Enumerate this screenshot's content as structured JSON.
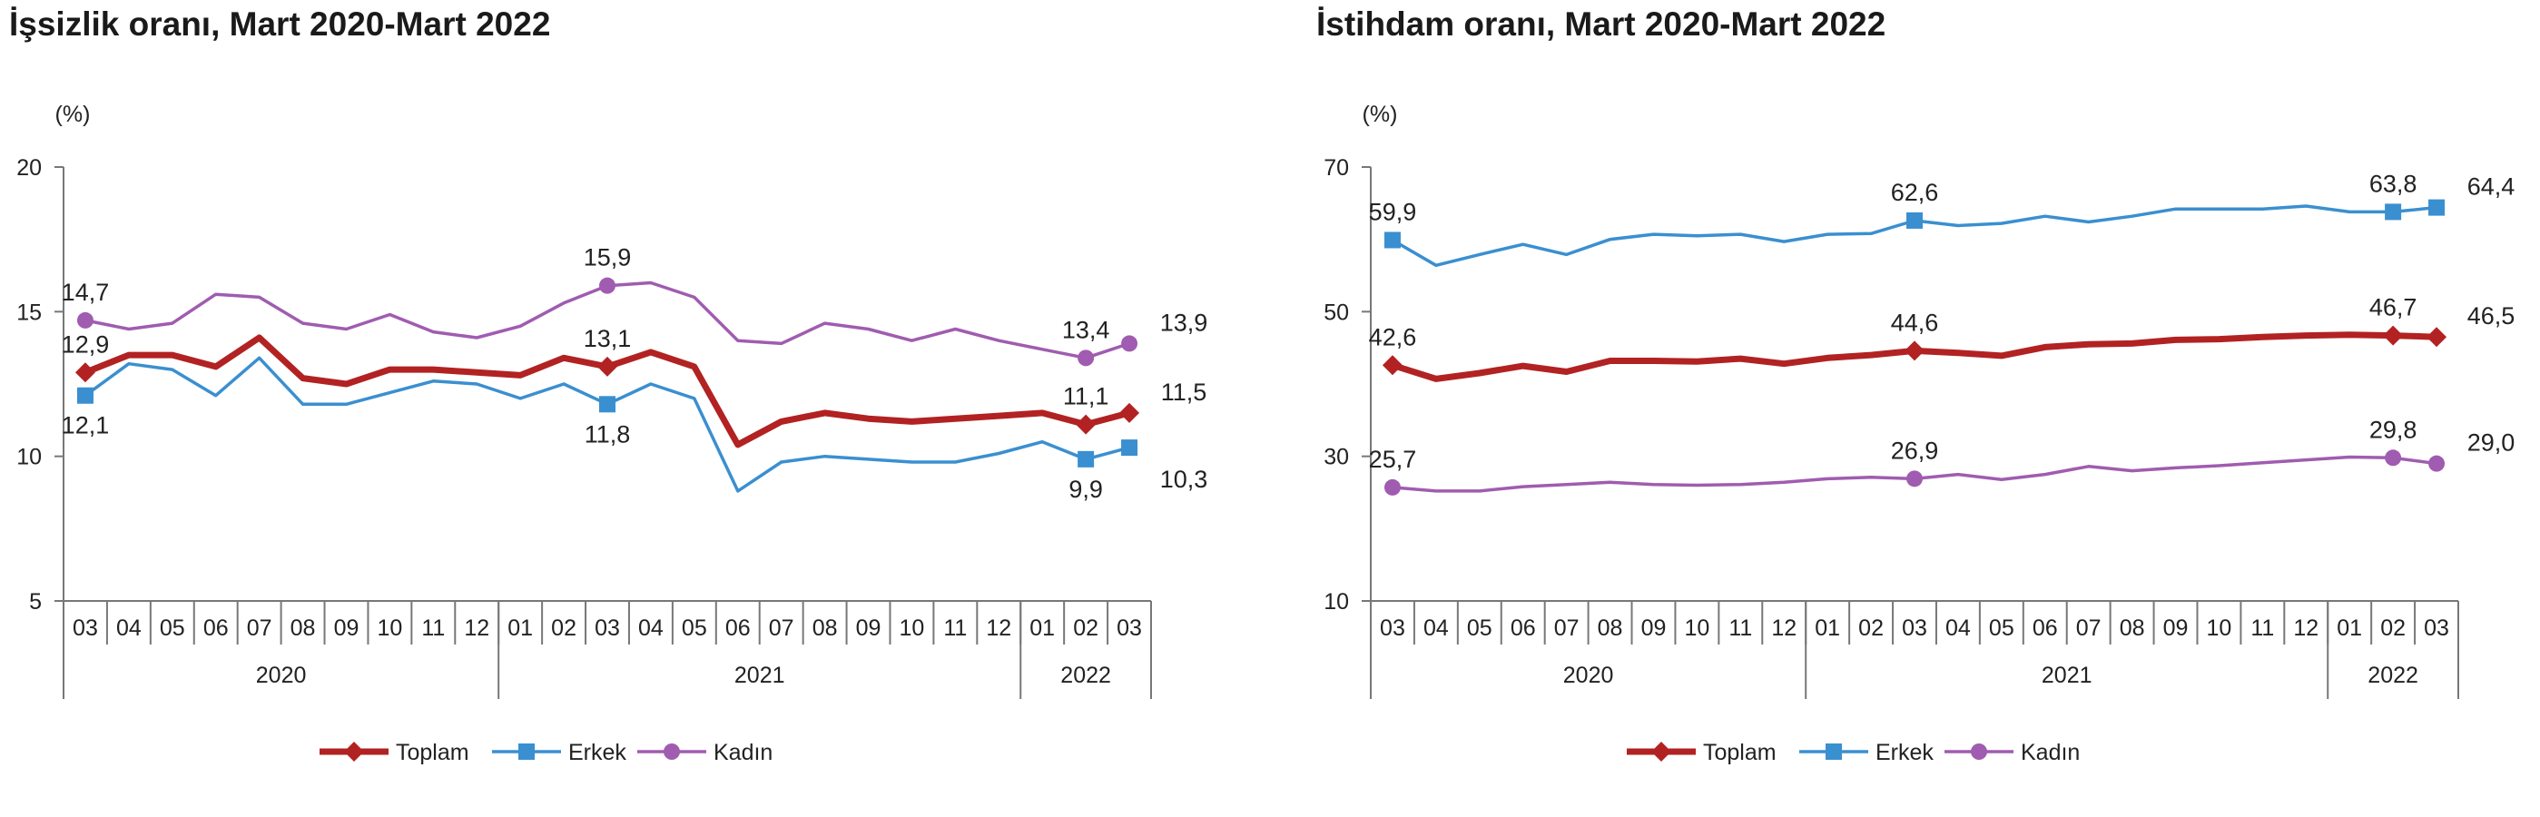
{
  "chart_data": [
    {
      "type": "line",
      "title": "İşsizlik oranı, Mart 2020-Mart 2022",
      "ylabel": "(%)",
      "ylim": [
        5,
        20
      ],
      "yticks": [
        "5",
        "10",
        "15",
        "20"
      ],
      "categories": [
        "03",
        "04",
        "05",
        "06",
        "07",
        "08",
        "09",
        "10",
        "11",
        "12",
        "01",
        "02",
        "03",
        "04",
        "05",
        "06",
        "07",
        "08",
        "09",
        "10",
        "11",
        "12",
        "01",
        "02",
        "03"
      ],
      "years": [
        {
          "label": "2020",
          "from": 0,
          "to": 9
        },
        {
          "label": "2021",
          "from": 10,
          "to": 21
        },
        {
          "label": "2022",
          "from": 22,
          "to": 24
        }
      ],
      "grid": false,
      "legend_position": "bottom",
      "series": [
        {
          "name": "Toplam",
          "color": "#b22222",
          "marker": "diamond",
          "values": [
            12.9,
            13.5,
            13.5,
            13.1,
            14.1,
            12.7,
            12.5,
            13.0,
            13.0,
            12.9,
            12.8,
            13.4,
            13.1,
            13.6,
            13.1,
            10.4,
            11.2,
            11.5,
            11.3,
            11.2,
            11.3,
            11.4,
            11.5,
            11.1,
            11.5
          ],
          "labels": [
            {
              "i": 0,
              "text": "12,9",
              "pos": "above"
            },
            {
              "i": 12,
              "text": "13,1",
              "pos": "above"
            },
            {
              "i": 23,
              "text": "11,1",
              "pos": "above"
            },
            {
              "i": 24,
              "text": "11,5",
              "pos": "right-above"
            }
          ]
        },
        {
          "name": "Erkek",
          "color": "#3a8fd0",
          "marker": "square",
          "values": [
            12.1,
            13.2,
            13.0,
            12.1,
            13.4,
            11.8,
            11.8,
            12.2,
            12.6,
            12.5,
            12.0,
            12.5,
            11.8,
            12.5,
            12.0,
            8.8,
            9.8,
            10.0,
            9.9,
            9.8,
            9.8,
            10.1,
            10.5,
            9.9,
            10.3
          ],
          "labels": [
            {
              "i": 0,
              "text": "12,1",
              "pos": "below"
            },
            {
              "i": 12,
              "text": "11,8",
              "pos": "below"
            },
            {
              "i": 23,
              "text": "9,9",
              "pos": "below"
            },
            {
              "i": 24,
              "text": "10,3",
              "pos": "right-below"
            }
          ]
        },
        {
          "name": "Kadın",
          "color": "#a05cb0",
          "marker": "circle",
          "values": [
            14.7,
            14.4,
            14.6,
            15.6,
            15.5,
            14.6,
            14.4,
            14.9,
            14.3,
            14.1,
            14.5,
            15.3,
            15.9,
            16.0,
            15.5,
            14.0,
            13.9,
            14.6,
            14.4,
            14.0,
            14.4,
            14.0,
            13.7,
            13.4,
            13.9
          ],
          "labels": [
            {
              "i": 0,
              "text": "14,7",
              "pos": "above"
            },
            {
              "i": 12,
              "text": "15,9",
              "pos": "above"
            },
            {
              "i": 23,
              "text": "13,4",
              "pos": "above"
            },
            {
              "i": 24,
              "text": "13,9",
              "pos": "right-above"
            }
          ]
        }
      ]
    },
    {
      "type": "line",
      "title": "İstihdam oranı, Mart 2020-Mart 2022",
      "ylabel": "(%)",
      "ylim": [
        10,
        70
      ],
      "yticks": [
        "10",
        "30",
        "50",
        "70"
      ],
      "categories": [
        "03",
        "04",
        "05",
        "06",
        "07",
        "08",
        "09",
        "10",
        "11",
        "12",
        "01",
        "02",
        "03",
        "04",
        "05",
        "06",
        "07",
        "08",
        "09",
        "10",
        "11",
        "12",
        "01",
        "02",
        "03"
      ],
      "years": [
        {
          "label": "2020",
          "from": 0,
          "to": 9
        },
        {
          "label": "2021",
          "from": 10,
          "to": 21
        },
        {
          "label": "2022",
          "from": 22,
          "to": 24
        }
      ],
      "grid": false,
      "legend_position": "bottom",
      "series": [
        {
          "name": "Toplam",
          "color": "#b22222",
          "marker": "diamond",
          "values": [
            42.6,
            40.7,
            41.5,
            42.5,
            41.7,
            43.2,
            43.2,
            43.1,
            43.5,
            42.8,
            43.6,
            44.0,
            44.6,
            44.3,
            43.9,
            45.1,
            45.5,
            45.6,
            46.1,
            46.2,
            46.5,
            46.7,
            46.8,
            46.7,
            46.5
          ],
          "labels": [
            {
              "i": 0,
              "text": "42,6",
              "pos": "above"
            },
            {
              "i": 12,
              "text": "44,6",
              "pos": "above"
            },
            {
              "i": 23,
              "text": "46,7",
              "pos": "above"
            },
            {
              "i": 24,
              "text": "46,5",
              "pos": "right-above"
            }
          ]
        },
        {
          "name": "Erkek",
          "color": "#3a8fd0",
          "marker": "square",
          "values": [
            59.9,
            56.4,
            57.9,
            59.3,
            57.9,
            60.0,
            60.7,
            60.5,
            60.7,
            59.7,
            60.7,
            60.8,
            62.6,
            61.9,
            62.2,
            63.2,
            62.4,
            63.2,
            64.2,
            64.2,
            64.2,
            64.6,
            63.8,
            63.8,
            64.4
          ],
          "labels": [
            {
              "i": 0,
              "text": "59,9",
              "pos": "above"
            },
            {
              "i": 12,
              "text": "62,6",
              "pos": "above"
            },
            {
              "i": 23,
              "text": "63,8",
              "pos": "above"
            },
            {
              "i": 24,
              "text": "64,4",
              "pos": "right-above"
            }
          ]
        },
        {
          "name": "Kadın",
          "color": "#a05cb0",
          "marker": "circle",
          "values": [
            25.7,
            25.2,
            25.2,
            25.8,
            26.1,
            26.4,
            26.1,
            26.0,
            26.1,
            26.4,
            26.9,
            27.1,
            26.9,
            27.5,
            26.8,
            27.5,
            28.6,
            28.0,
            28.4,
            28.7,
            29.1,
            29.5,
            29.9,
            29.8,
            29.0
          ],
          "labels": [
            {
              "i": 0,
              "text": "25,7",
              "pos": "above"
            },
            {
              "i": 12,
              "text": "26,9",
              "pos": "above"
            },
            {
              "i": 23,
              "text": "29,8",
              "pos": "above"
            },
            {
              "i": 24,
              "text": "29,0",
              "pos": "right-above"
            }
          ]
        }
      ]
    }
  ]
}
